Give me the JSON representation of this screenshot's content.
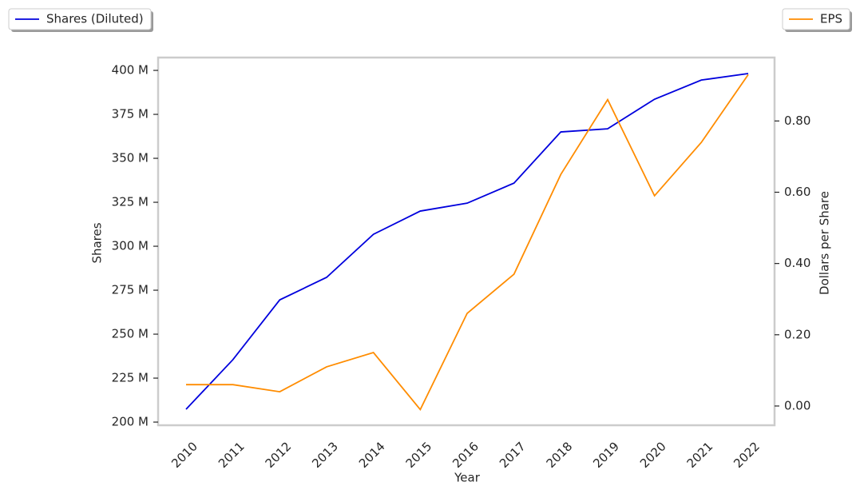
{
  "chart_data": {
    "type": "line",
    "x_label": "Year",
    "y_label": "Shares",
    "y2_label": "Dollars per Share",
    "categories": [
      "2010",
      "2011",
      "2012",
      "2013",
      "2014",
      "2015",
      "2016",
      "2017",
      "2018",
      "2019",
      "2020",
      "2021",
      "2022"
    ],
    "series": [
      {
        "name": "Shares (Diluted)",
        "color": "#0000dd",
        "values": [
          207300000,
          235500000,
          269500000,
          282300000,
          306800000,
          320000000,
          324500000,
          335900000,
          365000000,
          366800000,
          383600000,
          394500000,
          398200000
        ]
      },
      {
        "name": "EPS",
        "color": "#ff8c00",
        "axis": "y2",
        "values": [
          0.06,
          0.06,
          0.04,
          0.11,
          0.15,
          -0.01,
          0.26,
          0.37,
          0.65,
          0.86,
          0.59,
          0.74,
          0.93
        ]
      }
    ],
    "ylim": [
      198200000,
      407300000
    ],
    "yticks": [
      {
        "value": 200000000,
        "label": "200 M"
      },
      {
        "value": 225000000,
        "label": "225 M"
      },
      {
        "value": 250000000,
        "label": "250 M"
      },
      {
        "value": 275000000,
        "label": "275 M"
      },
      {
        "value": 300000000,
        "label": "300 M"
      },
      {
        "value": 325000000,
        "label": "325 M"
      },
      {
        "value": 350000000,
        "label": "350 M"
      },
      {
        "value": 375000000,
        "label": "375 M"
      },
      {
        "value": 400000000,
        "label": "400 M"
      }
    ],
    "y2lim": [
      -0.054,
      0.978
    ],
    "y2ticks": [
      {
        "value": 0,
        "label": "0.00"
      },
      {
        "value": 0.2,
        "label": "0.20"
      },
      {
        "value": 0.4,
        "label": "0.40"
      },
      {
        "value": 0.6,
        "label": "0.60"
      },
      {
        "value": 0.8,
        "label": "0.80"
      }
    ],
    "grid": false
  }
}
